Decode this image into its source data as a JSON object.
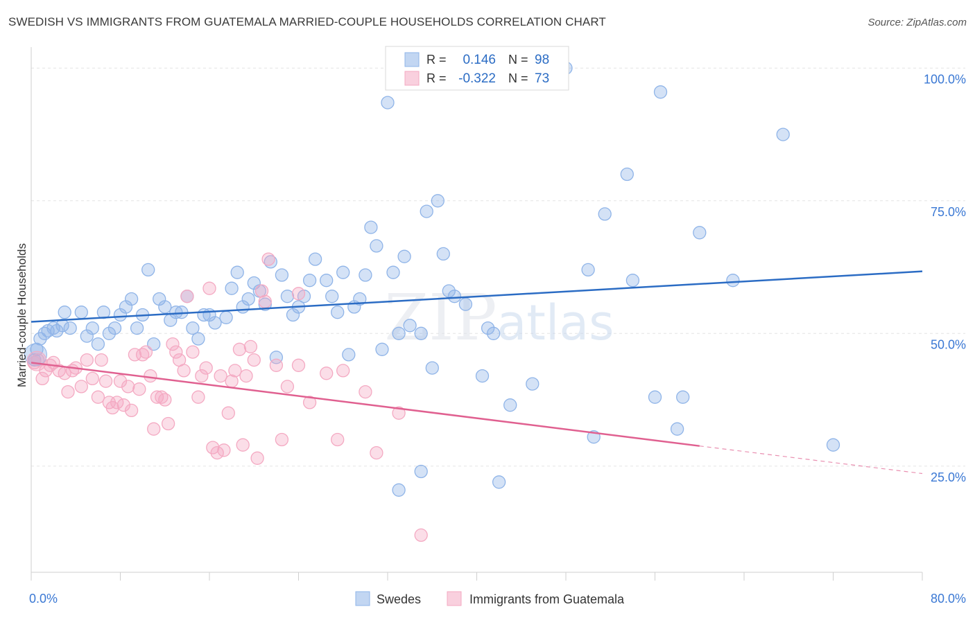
{
  "chart_data": {
    "type": "scatter",
    "title": "SWEDISH VS IMMIGRANTS FROM GUATEMALA MARRIED-COUPLE HOUSEHOLDS CORRELATION CHART",
    "source": "Source: ZipAtlas.com",
    "ylabel": "Married-couple Households",
    "xlim": [
      0,
      80
    ],
    "ylim": [
      5,
      105
    ],
    "x_ticks": [
      "0.0%",
      "80.0%"
    ],
    "y_ticks": [
      {
        "value": 25,
        "label": "25.0%"
      },
      {
        "value": 50,
        "label": "50.0%"
      },
      {
        "value": 75,
        "label": "75.0%"
      },
      {
        "value": 100,
        "label": "100.0%"
      }
    ],
    "grid": "horizontal dashed",
    "legend_position": "bottom-center",
    "watermark": "ZIPatlas",
    "stats": [
      {
        "r_label": "R =",
        "r_value": "0.146",
        "n_label": "N =",
        "n_value": "98"
      },
      {
        "r_label": "R =",
        "r_value": "-0.322",
        "n_label": "N =",
        "n_value": "73"
      }
    ],
    "series": [
      {
        "name": "Swedes",
        "color": "#8fb4e8",
        "line_color": "#2b6cc4",
        "trend": {
          "x": [
            0,
            80
          ],
          "y": [
            52.2,
            61.7
          ]
        },
        "points": [
          [
            0.3,
            45
          ],
          [
            0.5,
            47
          ],
          [
            0.8,
            49
          ],
          [
            1.2,
            50
          ],
          [
            1.5,
            50.5
          ],
          [
            2,
            51
          ],
          [
            2.3,
            50.5
          ],
          [
            2.8,
            51.5
          ],
          [
            3,
            54
          ],
          [
            3.5,
            51
          ],
          [
            4.5,
            54
          ],
          [
            5,
            49.5
          ],
          [
            5.5,
            51
          ],
          [
            6,
            48
          ],
          [
            6.5,
            54
          ],
          [
            7,
            50
          ],
          [
            7.5,
            51
          ],
          [
            8,
            53.5
          ],
          [
            8.5,
            55
          ],
          [
            9,
            56.5
          ],
          [
            9.5,
            51
          ],
          [
            10,
            53.5
          ],
          [
            10.5,
            62
          ],
          [
            11,
            48
          ],
          [
            11.5,
            56.5
          ],
          [
            12,
            55
          ],
          [
            12.5,
            52.5
          ],
          [
            13,
            54
          ],
          [
            13.5,
            54
          ],
          [
            14,
            57
          ],
          [
            14.5,
            51
          ],
          [
            15,
            49
          ],
          [
            15.5,
            53.5
          ],
          [
            16,
            53.5
          ],
          [
            16.5,
            52
          ],
          [
            17.5,
            53
          ],
          [
            18,
            58.5
          ],
          [
            18.5,
            61.5
          ],
          [
            19,
            55
          ],
          [
            19.5,
            56.5
          ],
          [
            20,
            59.5
          ],
          [
            20.5,
            58
          ],
          [
            21,
            55.5
          ],
          [
            21.5,
            63.5
          ],
          [
            22,
            45.5
          ],
          [
            22.5,
            61
          ],
          [
            23,
            57
          ],
          [
            23.5,
            53.5
          ],
          [
            24,
            55
          ],
          [
            24.5,
            57
          ],
          [
            25,
            60
          ],
          [
            25.5,
            64
          ],
          [
            26.5,
            60
          ],
          [
            27,
            57
          ],
          [
            27.5,
            54
          ],
          [
            28,
            61.5
          ],
          [
            28.5,
            46
          ],
          [
            29,
            55
          ],
          [
            29.5,
            56.5
          ],
          [
            30,
            61
          ],
          [
            30.5,
            70
          ],
          [
            31,
            66.5
          ],
          [
            31.5,
            47
          ],
          [
            32,
            93.5
          ],
          [
            32.5,
            61.5
          ],
          [
            33,
            50
          ],
          [
            33.5,
            64.5
          ],
          [
            34,
            51.5
          ],
          [
            35,
            50
          ],
          [
            35.5,
            73
          ],
          [
            36,
            43.5
          ],
          [
            36.5,
            75
          ],
          [
            37,
            65
          ],
          [
            37.5,
            58
          ],
          [
            38,
            57
          ],
          [
            39,
            55.5
          ],
          [
            40.5,
            42
          ],
          [
            41,
            51
          ],
          [
            41.5,
            50
          ],
          [
            43,
            36.5
          ],
          [
            45,
            40.5
          ],
          [
            50,
            62
          ],
          [
            50.5,
            30.5
          ],
          [
            51.5,
            72.5
          ],
          [
            53.5,
            80
          ],
          [
            54,
            60
          ],
          [
            56.5,
            95.5
          ],
          [
            56,
            38
          ],
          [
            58.5,
            38
          ],
          [
            58,
            32
          ],
          [
            60,
            69
          ],
          [
            63,
            60
          ],
          [
            67.5,
            87.5
          ],
          [
            72,
            29
          ],
          [
            33,
            20.5
          ],
          [
            35,
            24
          ],
          [
            42,
            22
          ],
          [
            48,
            100
          ]
        ]
      },
      {
        "name": "Immigrants from Guatemala",
        "color": "#f4a9c2",
        "line_color": "#e06090",
        "trend": {
          "x": [
            0,
            60
          ],
          "y": [
            44.5,
            28.8
          ]
        },
        "trend_dashed": {
          "x": [
            60,
            80
          ],
          "y": [
            28.8,
            23.6
          ]
        },
        "points": [
          [
            0.3,
            44.5
          ],
          [
            0.6,
            45
          ],
          [
            1,
            41.5
          ],
          [
            1.3,
            43
          ],
          [
            1.7,
            44
          ],
          [
            2,
            44.5
          ],
          [
            2.5,
            43
          ],
          [
            3,
            42.5
          ],
          [
            3.3,
            39
          ],
          [
            3.7,
            43
          ],
          [
            4,
            43.5
          ],
          [
            4.5,
            40
          ],
          [
            5,
            45
          ],
          [
            5.5,
            41.5
          ],
          [
            6,
            38
          ],
          [
            6.3,
            45
          ],
          [
            6.7,
            41
          ],
          [
            7,
            37
          ],
          [
            7.3,
            36
          ],
          [
            7.7,
            37
          ],
          [
            8,
            41
          ],
          [
            8.3,
            36.5
          ],
          [
            8.7,
            40
          ],
          [
            9,
            35.5
          ],
          [
            9.3,
            46
          ],
          [
            9.7,
            39.5
          ],
          [
            10,
            46
          ],
          [
            10.3,
            46.5
          ],
          [
            10.7,
            42
          ],
          [
            11,
            32
          ],
          [
            11.3,
            38
          ],
          [
            11.7,
            38
          ],
          [
            12,
            37.5
          ],
          [
            12.3,
            33
          ],
          [
            12.7,
            48
          ],
          [
            13,
            46.5
          ],
          [
            13.3,
            45
          ],
          [
            13.7,
            43
          ],
          [
            14,
            57
          ],
          [
            14.5,
            46.5
          ],
          [
            15,
            38
          ],
          [
            15.3,
            42
          ],
          [
            15.7,
            43.5
          ],
          [
            16,
            58.5
          ],
          [
            16.3,
            28.5
          ],
          [
            16.7,
            27.5
          ],
          [
            17,
            42
          ],
          [
            17.3,
            28
          ],
          [
            17.7,
            35
          ],
          [
            18,
            41
          ],
          [
            18.3,
            43
          ],
          [
            18.7,
            47
          ],
          [
            19,
            29
          ],
          [
            19.3,
            42
          ],
          [
            19.7,
            47.5
          ],
          [
            20,
            45
          ],
          [
            20.3,
            26.5
          ],
          [
            20.7,
            58
          ],
          [
            21,
            56
          ],
          [
            21.3,
            64
          ],
          [
            22,
            44
          ],
          [
            22.5,
            30
          ],
          [
            23,
            40
          ],
          [
            24,
            57.5
          ],
          [
            25,
            37
          ],
          [
            27.5,
            30
          ],
          [
            28,
            43
          ],
          [
            30,
            39
          ],
          [
            31,
            27.5
          ],
          [
            33,
            35
          ],
          [
            35,
            12
          ],
          [
            24,
            44
          ],
          [
            26.5,
            42.5
          ]
        ]
      }
    ]
  }
}
